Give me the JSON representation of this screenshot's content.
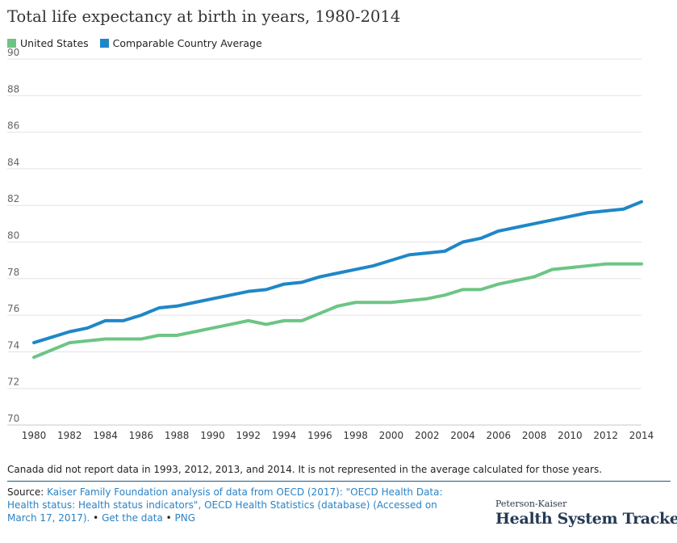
{
  "colors": {
    "us": "#6cc585",
    "comparable": "#1f87c7",
    "grid": "#e3e3e3",
    "link": "#2a83c5"
  },
  "chart_data": {
    "type": "line",
    "title": "Total life expectancy at birth in years, 1980-2014",
    "xlabel": "",
    "ylabel": "",
    "ylim": [
      70,
      90
    ],
    "xlim": [
      1980,
      2014
    ],
    "y_ticks": [
      "70",
      "72",
      "74",
      "76",
      "78",
      "80",
      "82",
      "84",
      "86",
      "88",
      "90"
    ],
    "x_ticks": [
      "1980",
      "1982",
      "1984",
      "1986",
      "1988",
      "1990",
      "1992",
      "1994",
      "1996",
      "1998",
      "2000",
      "2002",
      "2004",
      "2006",
      "2008",
      "2010",
      "2012",
      "2014"
    ],
    "legend_position": "top-left",
    "grid": true,
    "x": [
      1980,
      1981,
      1982,
      1983,
      1984,
      1985,
      1986,
      1987,
      1988,
      1989,
      1990,
      1991,
      1992,
      1993,
      1994,
      1995,
      1996,
      1997,
      1998,
      1999,
      2000,
      2001,
      2002,
      2003,
      2004,
      2005,
      2006,
      2007,
      2008,
      2009,
      2010,
      2011,
      2012,
      2013,
      2014
    ],
    "series": [
      {
        "name": "United States",
        "values": [
          73.7,
          74.1,
          74.5,
          74.6,
          74.7,
          74.7,
          74.7,
          74.9,
          74.9,
          75.1,
          75.3,
          75.5,
          75.7,
          75.5,
          75.7,
          75.7,
          76.1,
          76.5,
          76.7,
          76.7,
          76.7,
          76.8,
          76.9,
          77.1,
          77.4,
          77.4,
          77.7,
          77.9,
          78.1,
          78.5,
          78.6,
          78.7,
          78.8,
          78.8,
          78.8
        ]
      },
      {
        "name": "Comparable Country Average",
        "values": [
          74.5,
          74.8,
          75.1,
          75.3,
          75.7,
          75.7,
          76.0,
          76.4,
          76.5,
          76.7,
          76.9,
          77.1,
          77.3,
          77.4,
          77.7,
          77.8,
          78.1,
          78.3,
          78.5,
          78.7,
          79.0,
          79.3,
          79.4,
          79.5,
          80.0,
          80.2,
          80.6,
          80.8,
          81.0,
          81.2,
          81.4,
          81.6,
          81.7,
          81.8,
          82.2
        ]
      }
    ]
  },
  "note": "Canada did not report data in 1993, 2012, 2013, and 2014. It is not represented in the average calculated for those years.",
  "source": {
    "label": "Source:",
    "text": "Kaiser Family Foundation analysis of data from OECD (2017): \"OECD Health Data: Health status: Health status indicators\", OECD Health Statistics (database) (Accessed on March 17, 2017).",
    "sep1": "•",
    "get_data": "Get the data",
    "sep2": "•",
    "png": "PNG"
  },
  "brand": {
    "top": "Peterson-Kaiser",
    "main": "Health System Tracker"
  }
}
